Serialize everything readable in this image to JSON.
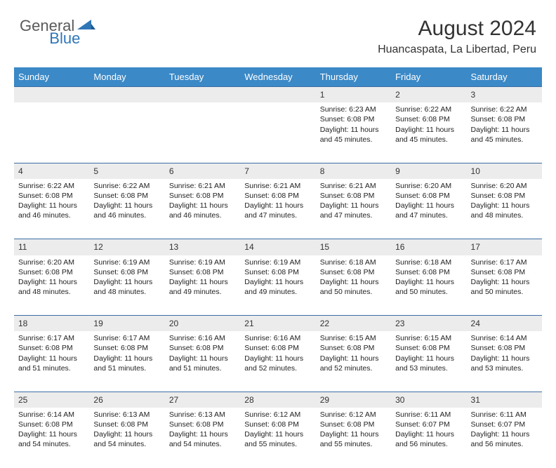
{
  "logo": {
    "general": "General",
    "blue": "Blue"
  },
  "title": "August 2024",
  "subtitle": "Huancaspata, La Libertad, Peru",
  "colors": {
    "header_bg": "#3b89c7",
    "header_text": "#ffffff",
    "daynum_bg": "#ececec",
    "row_border": "#3b6ea5",
    "logo_blue": "#2f76b7",
    "logo_gray": "#5a5a5a"
  },
  "dayHeaders": [
    "Sunday",
    "Monday",
    "Tuesday",
    "Wednesday",
    "Thursday",
    "Friday",
    "Saturday"
  ],
  "weeks": [
    [
      null,
      null,
      null,
      null,
      {
        "n": "1",
        "sr": "6:23 AM",
        "ss": "6:08 PM",
        "dl": "11 hours and 45 minutes."
      },
      {
        "n": "2",
        "sr": "6:22 AM",
        "ss": "6:08 PM",
        "dl": "11 hours and 45 minutes."
      },
      {
        "n": "3",
        "sr": "6:22 AM",
        "ss": "6:08 PM",
        "dl": "11 hours and 45 minutes."
      }
    ],
    [
      {
        "n": "4",
        "sr": "6:22 AM",
        "ss": "6:08 PM",
        "dl": "11 hours and 46 minutes."
      },
      {
        "n": "5",
        "sr": "6:22 AM",
        "ss": "6:08 PM",
        "dl": "11 hours and 46 minutes."
      },
      {
        "n": "6",
        "sr": "6:21 AM",
        "ss": "6:08 PM",
        "dl": "11 hours and 46 minutes."
      },
      {
        "n": "7",
        "sr": "6:21 AM",
        "ss": "6:08 PM",
        "dl": "11 hours and 47 minutes."
      },
      {
        "n": "8",
        "sr": "6:21 AM",
        "ss": "6:08 PM",
        "dl": "11 hours and 47 minutes."
      },
      {
        "n": "9",
        "sr": "6:20 AM",
        "ss": "6:08 PM",
        "dl": "11 hours and 47 minutes."
      },
      {
        "n": "10",
        "sr": "6:20 AM",
        "ss": "6:08 PM",
        "dl": "11 hours and 48 minutes."
      }
    ],
    [
      {
        "n": "11",
        "sr": "6:20 AM",
        "ss": "6:08 PM",
        "dl": "11 hours and 48 minutes."
      },
      {
        "n": "12",
        "sr": "6:19 AM",
        "ss": "6:08 PM",
        "dl": "11 hours and 48 minutes."
      },
      {
        "n": "13",
        "sr": "6:19 AM",
        "ss": "6:08 PM",
        "dl": "11 hours and 49 minutes."
      },
      {
        "n": "14",
        "sr": "6:19 AM",
        "ss": "6:08 PM",
        "dl": "11 hours and 49 minutes."
      },
      {
        "n": "15",
        "sr": "6:18 AM",
        "ss": "6:08 PM",
        "dl": "11 hours and 50 minutes."
      },
      {
        "n": "16",
        "sr": "6:18 AM",
        "ss": "6:08 PM",
        "dl": "11 hours and 50 minutes."
      },
      {
        "n": "17",
        "sr": "6:17 AM",
        "ss": "6:08 PM",
        "dl": "11 hours and 50 minutes."
      }
    ],
    [
      {
        "n": "18",
        "sr": "6:17 AM",
        "ss": "6:08 PM",
        "dl": "11 hours and 51 minutes."
      },
      {
        "n": "19",
        "sr": "6:17 AM",
        "ss": "6:08 PM",
        "dl": "11 hours and 51 minutes."
      },
      {
        "n": "20",
        "sr": "6:16 AM",
        "ss": "6:08 PM",
        "dl": "11 hours and 51 minutes."
      },
      {
        "n": "21",
        "sr": "6:16 AM",
        "ss": "6:08 PM",
        "dl": "11 hours and 52 minutes."
      },
      {
        "n": "22",
        "sr": "6:15 AM",
        "ss": "6:08 PM",
        "dl": "11 hours and 52 minutes."
      },
      {
        "n": "23",
        "sr": "6:15 AM",
        "ss": "6:08 PM",
        "dl": "11 hours and 53 minutes."
      },
      {
        "n": "24",
        "sr": "6:14 AM",
        "ss": "6:08 PM",
        "dl": "11 hours and 53 minutes."
      }
    ],
    [
      {
        "n": "25",
        "sr": "6:14 AM",
        "ss": "6:08 PM",
        "dl": "11 hours and 54 minutes."
      },
      {
        "n": "26",
        "sr": "6:13 AM",
        "ss": "6:08 PM",
        "dl": "11 hours and 54 minutes."
      },
      {
        "n": "27",
        "sr": "6:13 AM",
        "ss": "6:08 PM",
        "dl": "11 hours and 54 minutes."
      },
      {
        "n": "28",
        "sr": "6:12 AM",
        "ss": "6:08 PM",
        "dl": "11 hours and 55 minutes."
      },
      {
        "n": "29",
        "sr": "6:12 AM",
        "ss": "6:08 PM",
        "dl": "11 hours and 55 minutes."
      },
      {
        "n": "30",
        "sr": "6:11 AM",
        "ss": "6:07 PM",
        "dl": "11 hours and 56 minutes."
      },
      {
        "n": "31",
        "sr": "6:11 AM",
        "ss": "6:07 PM",
        "dl": "11 hours and 56 minutes."
      }
    ]
  ],
  "labels": {
    "sunrise": "Sunrise: ",
    "sunset": "Sunset: ",
    "daylight": "Daylight: "
  }
}
